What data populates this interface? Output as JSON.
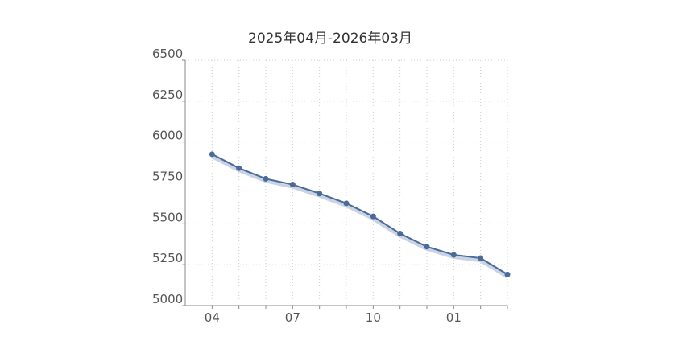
{
  "chart_data": {
    "type": "line",
    "title": "2025年04月-2026年03月",
    "categories": [
      "04",
      null,
      null,
      "07",
      null,
      null,
      "10",
      null,
      null,
      "01",
      null,
      null
    ],
    "series": [
      {
        "color": "#4a6a9a",
        "values": [
          5925,
          5840,
          5775,
          5740,
          5685,
          5625,
          5545,
          5440,
          5360,
          5310,
          5290,
          5190
        ]
      }
    ],
    "ylim": [
      5000,
      6500
    ],
    "yticks": [
      5000,
      5250,
      5500,
      5750,
      6000,
      6250,
      6500
    ],
    "grid": true
  }
}
